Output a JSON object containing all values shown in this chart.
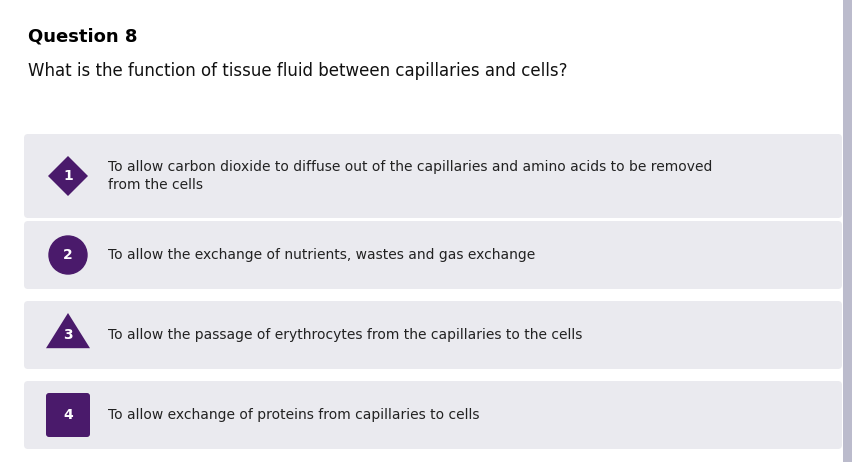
{
  "title": "Question 8",
  "question": "What is the function of tissue fluid between capillaries and cells?",
  "options": [
    {
      "number": "1",
      "text": "To allow carbon dioxide to diffuse out of the capillaries and amino acids to be removed\nfrom the cells",
      "shape": "diamond",
      "bg_color": "#eaeaef"
    },
    {
      "number": "2",
      "text": "To allow the exchange of nutrients, wastes and gas exchange",
      "shape": "circle",
      "bg_color": "#eaeaef"
    },
    {
      "number": "3",
      "text": "To allow the passage of erythrocytes from the capillaries to the cells",
      "shape": "triangle",
      "bg_color": "#eaeaef"
    },
    {
      "number": "4",
      "text": "To allow exchange of proteins from capillaries to cells",
      "shape": "square",
      "bg_color": "#eaeaef"
    }
  ],
  "badge_color": "#4a1a6b",
  "badge_text_color": "#ffffff",
  "background_color": "#ffffff",
  "title_color": "#000000",
  "question_color": "#111111",
  "option_text_color": "#222222",
  "right_bar_color": "#bbbbcc",
  "fig_width": 8.52,
  "fig_height": 4.62,
  "dpi": 100
}
